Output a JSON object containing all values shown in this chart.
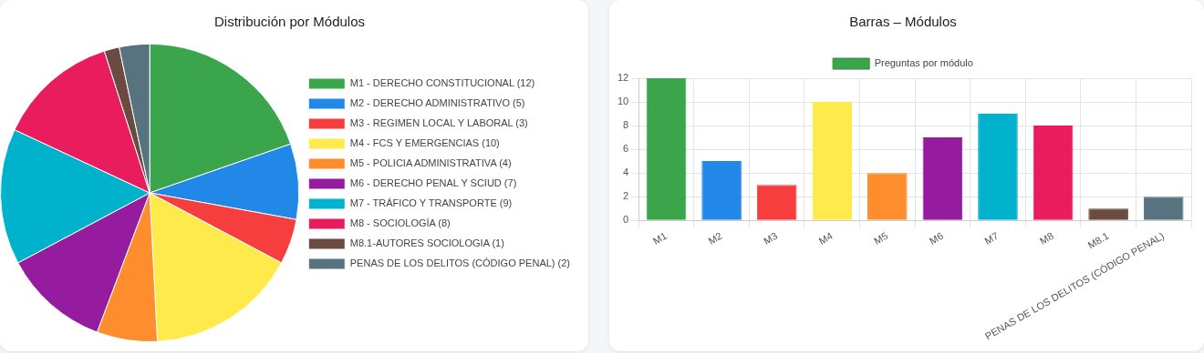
{
  "chart_data": [
    {
      "type": "pie",
      "title": "Distribución por Módulos",
      "legend": "right",
      "categories": [
        "M1 - DERECHO CONSTITUCIONAL (12)",
        "M2 - DERECHO ADMINISTRATIVO (5)",
        "M3 - REGIMEN LOCAL Y LABORAL (3)",
        "M4 - FCS Y EMERGENCIAS (10)",
        "M5 - POLICIA ADMINISTRATIVA (4)",
        "M6 - DERECHO PENAL Y SCIUD (7)",
        "M7 - TRÁFICO Y TRANSPORTE (9)",
        "M8 - SOCIOLOGÍA (8)",
        "M8.1-AUTORES SOCIOLOGIA (1)",
        "PENAS DE LOS DELITOS (CÓDIGO PENAL) (2)"
      ],
      "values": [
        12,
        5,
        3,
        10,
        4,
        7,
        9,
        8,
        1,
        2
      ],
      "colors": [
        "#3aa54a",
        "#2188e8",
        "#f53e3d",
        "#feea4b",
        "#fe8e2d",
        "#951c9f",
        "#00b2cc",
        "#e91d5d",
        "#6b4a41",
        "#577380"
      ]
    },
    {
      "type": "bar",
      "title": "Barras – Módulos",
      "legend": "top",
      "grid": true,
      "categories": [
        "M1",
        "M2",
        "M3",
        "M4",
        "M5",
        "M6",
        "M7",
        "M8",
        "M8.1",
        "PENAS DE LOS DELITOS (CÓDIGO PENAL)"
      ],
      "series": [
        {
          "name": "Preguntas por módulo",
          "color": "#3aa54a",
          "values": [
            12,
            5,
            3,
            10,
            4,
            7,
            9,
            8,
            1,
            2
          ],
          "colors": [
            "#3aa54a",
            "#2188e8",
            "#f53e3d",
            "#feea4b",
            "#fe8e2d",
            "#951c9f",
            "#00b2cc",
            "#e91d5d",
            "#6b4a41",
            "#577380"
          ]
        }
      ],
      "ylim": [
        0,
        12
      ],
      "yticks": [
        0,
        2,
        4,
        6,
        8,
        10,
        12
      ]
    }
  ]
}
